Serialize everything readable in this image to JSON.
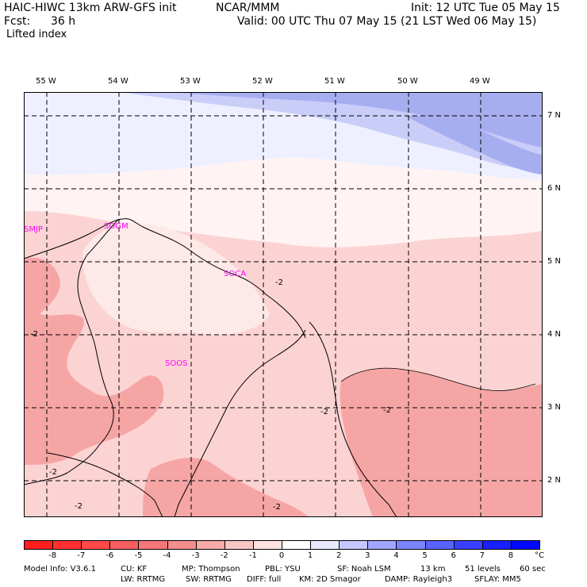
{
  "header": {
    "model_line": "HAIC-HIWC 13km ARW-GFS init",
    "org": "NCAR/MMM",
    "init": "Init: 12 UTC Tue 05 May 15",
    "fcst_label": "Fcst:",
    "fcst_value": "36 h",
    "valid": "Valid: 00 UTC Thu 07 May 15 (21 LST Wed 06 May 15)",
    "field": "Lifted index"
  },
  "map": {
    "lon_labels": [
      "55 W",
      "54 W",
      "53 W",
      "52 W",
      "51 W",
      "50 W",
      "49 W"
    ],
    "lat_labels": [
      "7 N",
      "6 N",
      "5 N",
      "4 N",
      "3 N",
      "2 N"
    ],
    "stations": [
      "SMJP",
      "SOGM",
      "SOCA",
      "SOOS"
    ],
    "contour_labels": [
      "-2",
      "-2",
      "-2",
      "-2",
      "-2",
      "-2",
      "-2"
    ],
    "colors": {
      "pos_very_light": "#eef0ff",
      "pos_light": "#c9cdf8",
      "pos_medium": "#a7aef0",
      "neutral": "#fff4f3",
      "neg_1": "#fcd3d3",
      "neg_2": "#f6a5a5",
      "neg_3": "#f08a8a"
    }
  },
  "colorbar": {
    "labels": [
      "-8",
      "-7",
      "-6",
      "-5",
      "-4",
      "-3",
      "-2",
      "-1",
      "0",
      "1",
      "2",
      "3",
      "4",
      "5",
      "6",
      "7",
      "8"
    ],
    "unit": "°C",
    "colors": [
      "#ff1e1e",
      "#ff3030",
      "#ff4848",
      "#f66060",
      "#f57777",
      "#f48e8e",
      "#f7aaaa",
      "#f9c6c6",
      "#fde2e2",
      "#ffffff",
      "#e8e9ff",
      "#c4c8ff",
      "#a0a6ff",
      "#7c84ff",
      "#5a62ff",
      "#3840ff",
      "#1820ff",
      "#0008ff"
    ]
  },
  "footer": {
    "line1": [
      "Model Info: V3.6.1",
      "CU: KF",
      "MP: Thompson",
      "PBL: YSU",
      "SF: Noah LSM",
      "13 km",
      "51 levels",
      "60 sec"
    ],
    "line2": [
      "LW: RRTMG",
      "SW: RRTMG",
      "DIFF: full",
      "KM: 2D Smagor",
      "DAMP: Rayleigh3",
      "SFLAY: MM5"
    ]
  }
}
